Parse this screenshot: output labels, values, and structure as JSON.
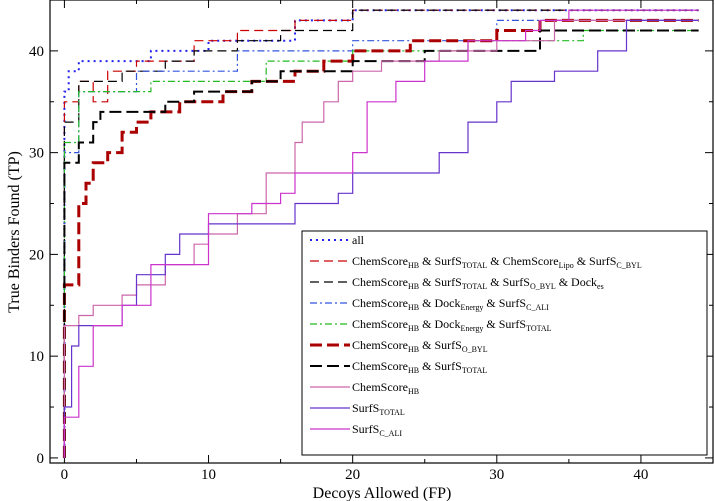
{
  "chart_data": {
    "type": "line",
    "xlabel": "Decoys Allowed (FP)",
    "ylabel": "True Binders Found (TP)",
    "xlim": [
      -1,
      45
    ],
    "ylim": [
      -0.5,
      45
    ],
    "x_ticks": [
      0,
      10,
      20,
      30,
      40
    ],
    "y_ticks": [
      0,
      10,
      20,
      30,
      40
    ],
    "grid": false,
    "legend_position": "bottom-right",
    "series": [
      {
        "name": "all",
        "legend_parts": [
          [
            "all",
            ""
          ]
        ],
        "color": "#2222ee",
        "dash": "2,4",
        "width": 2,
        "x": [
          0,
          0,
          0.3,
          0.3,
          1,
          1,
          6,
          6,
          10,
          10,
          16,
          16,
          20,
          20,
          44
        ],
        "y": [
          0,
          36,
          36,
          38,
          38,
          39,
          39,
          40,
          40,
          41,
          41,
          43,
          43,
          44,
          44
        ]
      },
      {
        "name": "ChemScore HB & SurfS TOTAL & ChemScore Lipo & SurfS C_BYL",
        "legend_parts": [
          [
            "ChemScore",
            ""
          ],
          [
            "HB",
            "sub"
          ],
          [
            " & SurfS",
            ""
          ],
          [
            "TOTAL",
            "sub"
          ],
          [
            " & ChemScore",
            ""
          ],
          [
            "Lipo",
            "sub"
          ],
          [
            " & SurfS",
            ""
          ],
          [
            "C_BYL",
            "sub"
          ]
        ],
        "color": "#cc0000",
        "dash": "9,5",
        "width": 1.2,
        "x": [
          0,
          0,
          1,
          1,
          2,
          2,
          3,
          3,
          5,
          5,
          9,
          9,
          12,
          12,
          16,
          16,
          20,
          20,
          44
        ],
        "y": [
          0,
          35,
          35,
          37,
          37,
          35,
          35,
          38,
          38,
          39,
          39,
          41,
          41,
          42,
          42,
          43,
          43,
          44,
          44
        ]
      },
      {
        "name": "ChemScore HB & SurfS TOTAL & SurfS O_BYL & Dock es",
        "legend_parts": [
          [
            "ChemScore",
            ""
          ],
          [
            "HB",
            "sub"
          ],
          [
            " & SurfS",
            ""
          ],
          [
            "TOTAL",
            "sub"
          ],
          [
            " & SurfS",
            ""
          ],
          [
            "O_BYL",
            "sub"
          ],
          [
            " & Dock",
            ""
          ],
          [
            "es",
            "sub"
          ]
        ],
        "color": "#000000",
        "dash": "9,5",
        "width": 1.2,
        "x": [
          0,
          0,
          1,
          1,
          4,
          4,
          7,
          7,
          9,
          9,
          12,
          12,
          15,
          15,
          20,
          20,
          44
        ],
        "y": [
          0,
          33,
          33,
          37,
          37,
          38,
          38,
          39,
          39,
          40,
          40,
          41,
          41,
          42,
          42,
          44,
          44
        ]
      },
      {
        "name": "ChemScore HB & Dock Energy & SurfS C_ALI",
        "legend_parts": [
          [
            "ChemScore",
            ""
          ],
          [
            "HB",
            "sub"
          ],
          [
            " & Dock",
            ""
          ],
          [
            "Energy",
            "sub"
          ],
          [
            " & SurfS",
            ""
          ],
          [
            "C_ALI",
            "sub"
          ]
        ],
        "color": "#3355dd",
        "dash": "7,3,2,3",
        "width": 1.2,
        "x": [
          0,
          0,
          1,
          1,
          5,
          5,
          12,
          12,
          20,
          20,
          30,
          30,
          44
        ],
        "y": [
          0,
          30,
          30,
          36,
          36,
          38,
          38,
          40,
          40,
          41,
          41,
          43,
          43
        ]
      },
      {
        "name": "ChemScore HB & Dock Energy & SurfS TOTAL",
        "legend_parts": [
          [
            "ChemScore",
            ""
          ],
          [
            "HB",
            "sub"
          ],
          [
            " & Dock",
            ""
          ],
          [
            "Energy",
            "sub"
          ],
          [
            " & SurfS",
            ""
          ],
          [
            "TOTAL",
            "sub"
          ]
        ],
        "color": "#22bb22",
        "dash": "7,3,2,3",
        "width": 1.2,
        "x": [
          0,
          0,
          1,
          1,
          6,
          6,
          14,
          14,
          20,
          20,
          28,
          28,
          36,
          36,
          44
        ],
        "y": [
          0,
          31,
          31,
          36,
          36,
          37,
          37,
          39,
          39,
          40,
          40,
          41,
          41,
          42,
          42
        ]
      },
      {
        "name": "ChemScore HB & SurfS O_BYL",
        "legend_parts": [
          [
            "ChemScore",
            ""
          ],
          [
            "HB",
            "sub"
          ],
          [
            " & SurfS",
            ""
          ],
          [
            "O_BYL",
            "sub"
          ]
        ],
        "color": "#aa0000",
        "dash": "12,5",
        "width": 3,
        "x": [
          0,
          0,
          1,
          1,
          1.5,
          1.5,
          2,
          2,
          3,
          3,
          4,
          4,
          5,
          5,
          6,
          6,
          8,
          8,
          11,
          11,
          13,
          13,
          16,
          16,
          18,
          18,
          20,
          20,
          24,
          24,
          30,
          30,
          33,
          33,
          44
        ],
        "y": [
          0,
          17,
          17,
          25,
          25,
          27,
          27,
          29,
          29,
          30,
          30,
          32,
          32,
          33,
          33,
          34,
          34,
          35,
          35,
          36,
          36,
          37,
          37,
          38,
          38,
          39,
          39,
          40,
          40,
          41,
          41,
          42,
          42,
          43,
          43
        ]
      },
      {
        "name": "ChemScore HB & SurfS TOTAL",
        "legend_parts": [
          [
            "ChemScore",
            ""
          ],
          [
            "HB",
            "sub"
          ],
          [
            " & SurfS",
            ""
          ],
          [
            "TOTAL",
            "sub"
          ]
        ],
        "color": "#000000",
        "dash": "12,5",
        "width": 2,
        "x": [
          0,
          0,
          1,
          1,
          2,
          2,
          2.5,
          2.5,
          3,
          3,
          7,
          7,
          9,
          9,
          11,
          11,
          13,
          13,
          15,
          15,
          20,
          20,
          25,
          25,
          33,
          33,
          44
        ],
        "y": [
          0,
          29,
          29,
          31,
          31,
          33,
          33,
          34,
          34,
          34,
          34,
          35,
          35,
          36,
          36,
          36,
          36,
          37,
          37,
          38,
          38,
          39,
          39,
          40,
          40,
          42,
          42
        ]
      },
      {
        "name": "ChemScore HB",
        "legend_parts": [
          [
            "ChemScore",
            ""
          ],
          [
            "HB",
            "sub"
          ]
        ],
        "color": "#cc66aa",
        "dash": "",
        "width": 1.2,
        "x": [
          0,
          0,
          1,
          1,
          2,
          2,
          4,
          4,
          5,
          5,
          7,
          7,
          9,
          9,
          10,
          10,
          12,
          12,
          14,
          14,
          16,
          16,
          16.5,
          16.5,
          18,
          18,
          19,
          19,
          20,
          20,
          22,
          22,
          26,
          26,
          30,
          30,
          34,
          34,
          44
        ],
        "y": [
          0,
          13,
          13,
          14,
          14,
          15,
          15,
          16,
          16,
          17,
          17,
          19,
          19,
          21,
          21,
          22,
          22,
          24,
          24,
          28,
          28,
          31,
          31,
          33,
          33,
          35,
          35,
          37,
          37,
          38,
          38,
          39,
          39,
          40,
          40,
          41,
          41,
          43,
          43
        ]
      },
      {
        "name": "SurfS TOTAL",
        "legend_parts": [
          [
            "SurfS",
            ""
          ],
          [
            "TOTAL",
            "sub"
          ]
        ],
        "color": "#6633cc",
        "dash": "",
        "width": 1.2,
        "x": [
          0,
          0,
          0.5,
          0.5,
          1,
          1,
          4,
          4,
          5,
          5,
          7,
          7,
          8,
          8,
          10,
          10,
          16,
          16,
          19,
          19,
          20,
          20,
          26,
          26,
          28,
          28,
          30,
          30,
          31,
          31,
          34,
          34,
          37,
          37,
          39,
          39,
          44
        ],
        "y": [
          0,
          5,
          5,
          11,
          11,
          13,
          13,
          15,
          15,
          18,
          18,
          20,
          20,
          22,
          22,
          23,
          23,
          25,
          25,
          26,
          26,
          28,
          28,
          30,
          30,
          33,
          33,
          35,
          35,
          37,
          37,
          38,
          38,
          40,
          40,
          43,
          43
        ]
      },
      {
        "name": "SurfS C_ALI",
        "legend_parts": [
          [
            "SurfS",
            ""
          ],
          [
            "C_ALI",
            "sub"
          ]
        ],
        "color": "#cc33cc",
        "dash": "",
        "width": 1.2,
        "x": [
          0,
          0,
          1,
          1,
          2,
          2,
          4,
          4,
          6,
          6,
          10,
          10,
          13,
          13,
          15,
          15,
          16,
          16,
          20,
          20,
          21,
          21,
          23,
          23,
          25,
          25,
          28,
          28,
          32,
          32,
          33,
          33,
          35,
          35,
          44
        ],
        "y": [
          0,
          4,
          4,
          9,
          9,
          13,
          13,
          15,
          15,
          19,
          19,
          24,
          24,
          25,
          25,
          26,
          26,
          28,
          28,
          30,
          30,
          35,
          35,
          37,
          37,
          39,
          39,
          41,
          41,
          42,
          42,
          43,
          43,
          44,
          44
        ]
      }
    ]
  }
}
